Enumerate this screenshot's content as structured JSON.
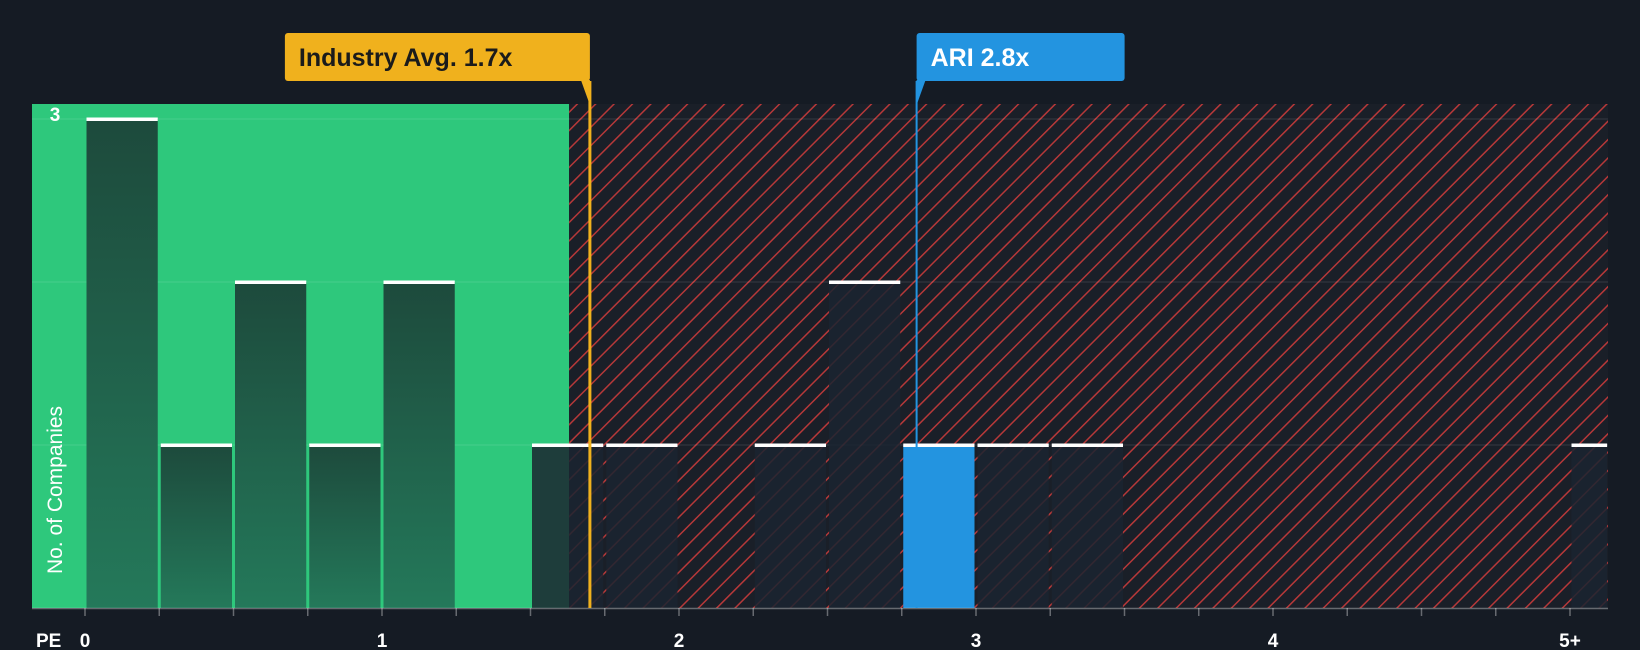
{
  "chart_data": {
    "type": "bar",
    "title": "",
    "xlabel": "PE",
    "ylabel": "No. of Companies",
    "xlim": [
      -0.18,
      5.13
    ],
    "ylim": [
      0,
      3.1
    ],
    "x_ticks": [
      {
        "value": 0,
        "label": "0"
      },
      {
        "value": 1,
        "label": "1"
      },
      {
        "value": 2,
        "label": "2"
      },
      {
        "value": 3,
        "label": "3"
      },
      {
        "value": 4,
        "label": "4"
      },
      {
        "value": 5,
        "label": "5+"
      }
    ],
    "y_ticks": [
      {
        "value": 3,
        "label": "3"
      }
    ],
    "fair_region_end": 1.63,
    "bins": [
      {
        "start": 0.0,
        "end": 0.25,
        "count": 3,
        "highlight": false
      },
      {
        "start": 0.25,
        "end": 0.5,
        "count": 1,
        "highlight": false
      },
      {
        "start": 0.5,
        "end": 0.75,
        "count": 2,
        "highlight": false
      },
      {
        "start": 0.75,
        "end": 1.0,
        "count": 1,
        "highlight": false
      },
      {
        "start": 1.0,
        "end": 1.25,
        "count": 2,
        "highlight": false
      },
      {
        "start": 1.5,
        "end": 1.75,
        "count": 1,
        "highlight": false
      },
      {
        "start": 1.75,
        "end": 2.0,
        "count": 1,
        "highlight": false
      },
      {
        "start": 2.25,
        "end": 2.5,
        "count": 1,
        "highlight": false
      },
      {
        "start": 2.5,
        "end": 2.75,
        "count": 2,
        "highlight": false
      },
      {
        "start": 2.75,
        "end": 3.0,
        "count": 1,
        "highlight": true
      },
      {
        "start": 3.0,
        "end": 3.25,
        "count": 1,
        "highlight": false
      },
      {
        "start": 3.25,
        "end": 3.5,
        "count": 1,
        "highlight": false
      },
      {
        "start": 5.0,
        "end": 5.13,
        "count": 1,
        "highlight": false
      }
    ],
    "annotations": [
      {
        "label": "Industry Avg. 1.7x",
        "value": 1.7,
        "color": "#f0b11d",
        "text_dark": true
      },
      {
        "label": "ARI 2.8x",
        "value": 2.8,
        "color": "#2394e0",
        "text_dark": false
      }
    ],
    "colors": {
      "background": "#151b24",
      "fair_region": "#2ec87c",
      "expensive_stripe": "#d23c3c",
      "bar_on_green": "#1d4a3c",
      "bar_on_dark": "#1b2430",
      "highlight_bar": "#2394e0",
      "bar_cap": "#ffffff"
    }
  }
}
